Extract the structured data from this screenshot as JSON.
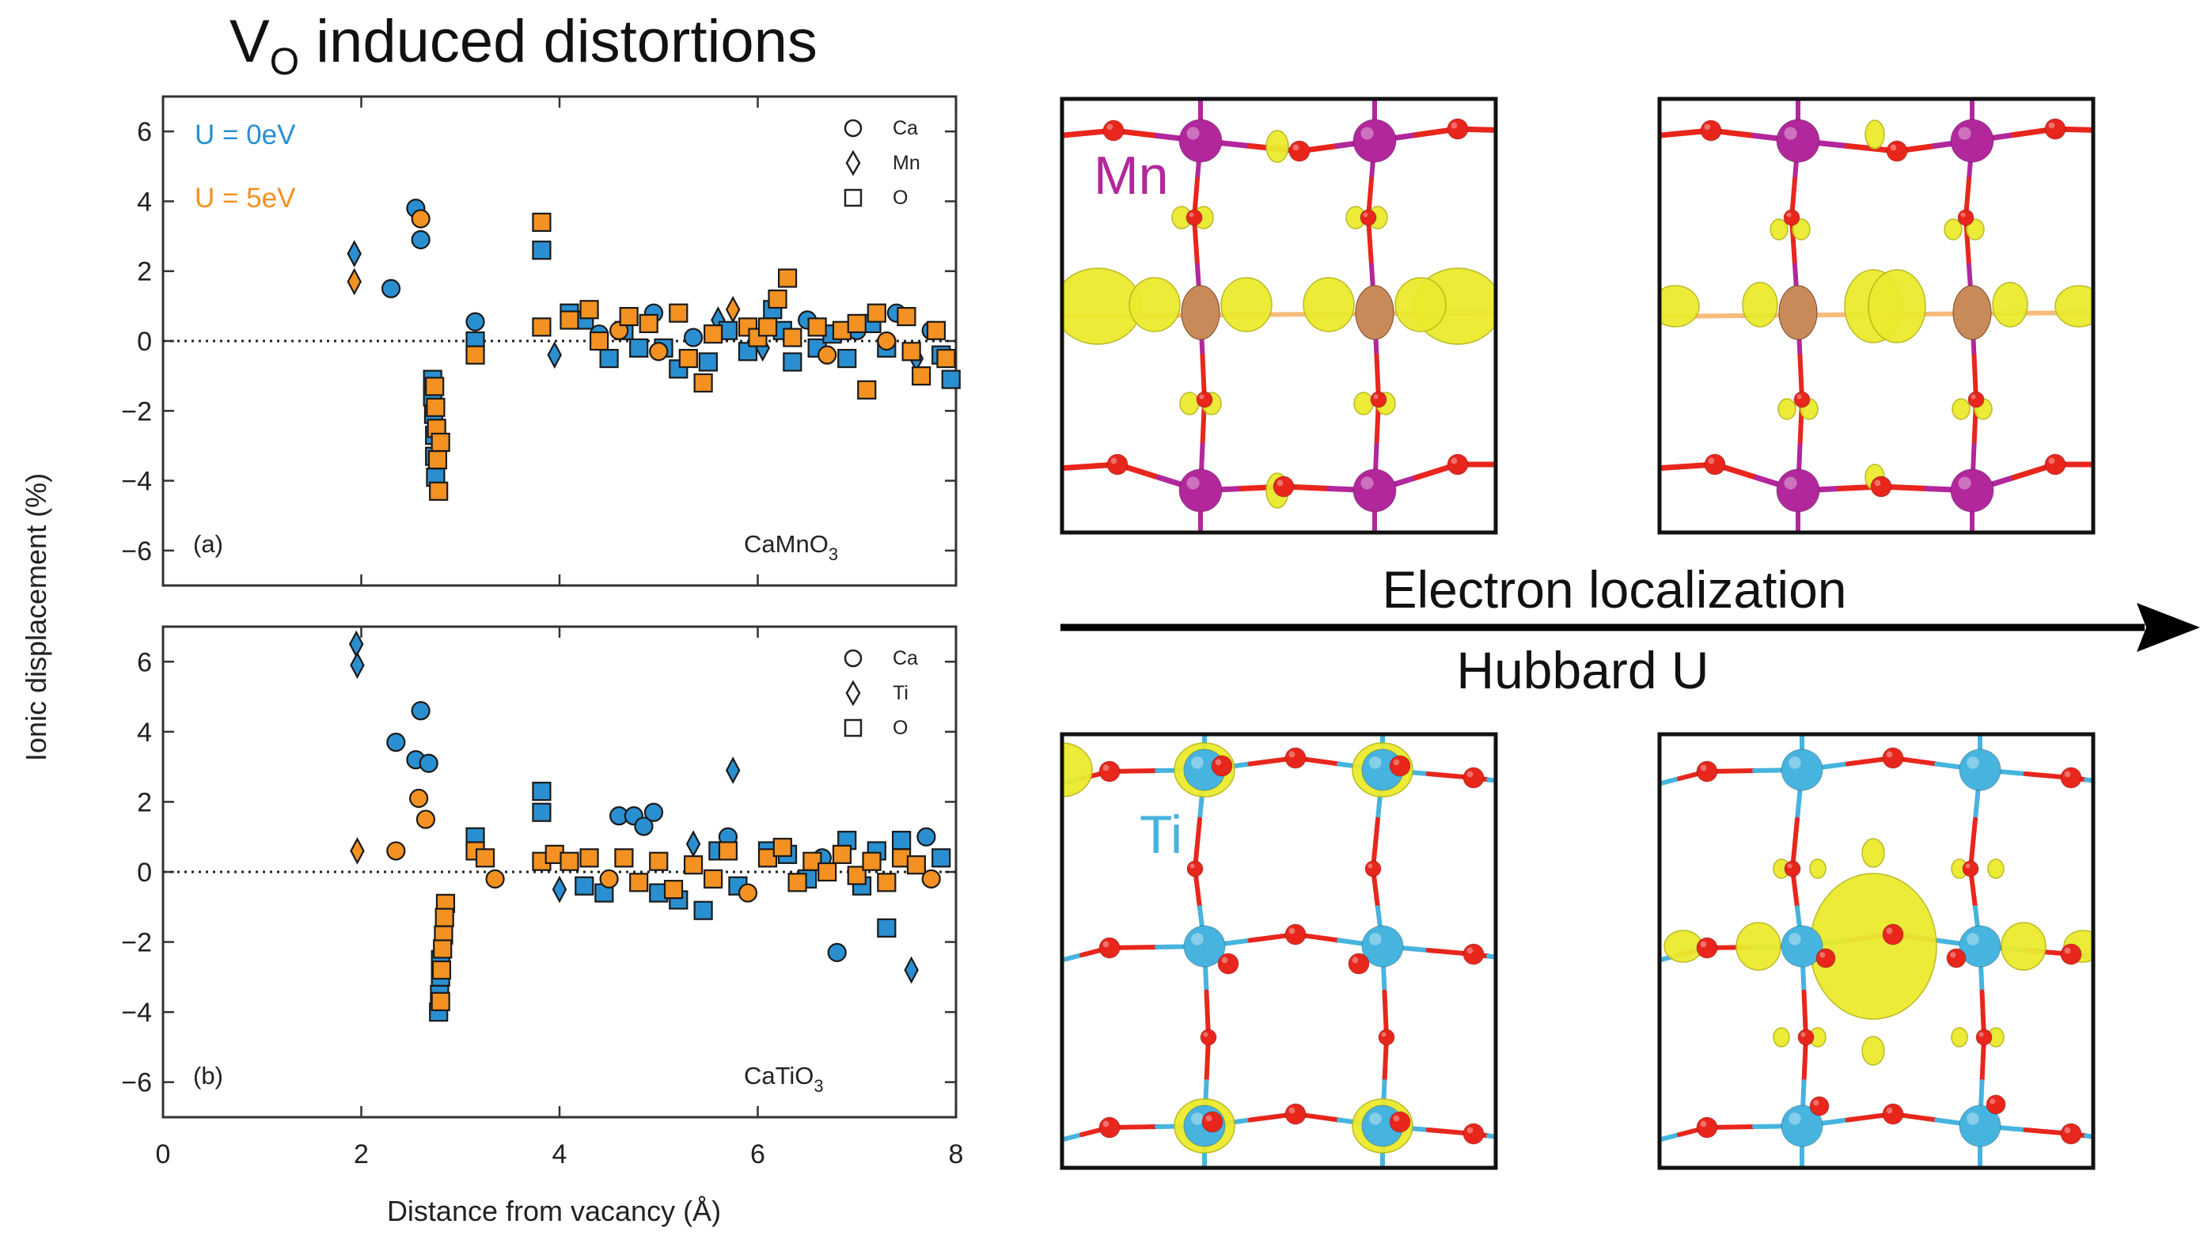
{
  "title": {
    "main": "V",
    "sub": "O",
    "rest": " induced distortions"
  },
  "colors": {
    "u0": "#2a8fd0",
    "u5": "#f39122",
    "mn": "#b2279c",
    "o": "#e8261c",
    "ti": "#46b4df",
    "iso": "#eaea2e"
  },
  "shared_xlabel": "Distance from vacancy (Å)",
  "shared_ylabel": "Ionic displacement (%)",
  "legend_u": [
    "U = 0eV",
    "U = 5eV"
  ],
  "chart_data": [
    {
      "type": "scatter",
      "panel_label": "(a)",
      "material": {
        "base": "CaMnO",
        "sub": "3"
      },
      "xlim": [
        0,
        8
      ],
      "ylim": [
        -7,
        7
      ],
      "xticks": [
        "0",
        "2",
        "4",
        "6",
        "8"
      ],
      "yticks": [
        "6",
        "4",
        "2",
        "0",
        "−2",
        "−4",
        "−6"
      ],
      "species": [
        {
          "label": "Ca",
          "marker": "circle"
        },
        {
          "label": "Mn",
          "marker": "diamond"
        },
        {
          "label": "O",
          "marker": "square"
        }
      ],
      "series": [
        {
          "name": "U = 0eV",
          "points": [
            [
              1.93,
              2.5,
              "d"
            ],
            [
              2.3,
              1.5,
              "c"
            ],
            [
              2.55,
              3.8,
              "c"
            ],
            [
              2.6,
              2.9,
              "c"
            ],
            [
              2.72,
              -1.1,
              "s"
            ],
            [
              2.72,
              -1.6,
              "s"
            ],
            [
              2.73,
              -2.1,
              "s"
            ],
            [
              2.74,
              -2.7,
              "s"
            ],
            [
              2.74,
              -3.3,
              "s"
            ],
            [
              2.75,
              -3.9,
              "s"
            ],
            [
              3.15,
              0.55,
              "c"
            ],
            [
              3.15,
              0.0,
              "s"
            ],
            [
              3.82,
              2.6,
              "s"
            ],
            [
              3.95,
              -0.4,
              "d"
            ],
            [
              4.1,
              0.8,
              "s"
            ],
            [
              4.25,
              0.6,
              "s"
            ],
            [
              4.4,
              0.2,
              "c"
            ],
            [
              4.5,
              -0.5,
              "s"
            ],
            [
              4.65,
              0.3,
              "s"
            ],
            [
              4.8,
              -0.2,
              "s"
            ],
            [
              4.95,
              0.8,
              "c"
            ],
            [
              5.05,
              -0.2,
              "s"
            ],
            [
              5.2,
              -0.8,
              "s"
            ],
            [
              5.35,
              0.1,
              "c"
            ],
            [
              5.5,
              -0.6,
              "s"
            ],
            [
              5.6,
              0.6,
              "d"
            ],
            [
              5.7,
              0.3,
              "s"
            ],
            [
              5.9,
              -0.3,
              "s"
            ],
            [
              6.05,
              -0.2,
              "d"
            ],
            [
              6.15,
              0.9,
              "s"
            ],
            [
              6.25,
              0.3,
              "s"
            ],
            [
              6.35,
              -0.6,
              "s"
            ],
            [
              6.5,
              0.6,
              "c"
            ],
            [
              6.6,
              -0.2,
              "s"
            ],
            [
              6.75,
              0.2,
              "s"
            ],
            [
              6.9,
              -0.5,
              "s"
            ],
            [
              7.0,
              0.3,
              "c"
            ],
            [
              7.15,
              0.5,
              "s"
            ],
            [
              7.3,
              -0.2,
              "s"
            ],
            [
              7.4,
              0.8,
              "c"
            ],
            [
              7.6,
              -0.5,
              "d"
            ],
            [
              7.75,
              0.3,
              "c"
            ],
            [
              7.85,
              -0.4,
              "s"
            ],
            [
              7.95,
              -1.1,
              "s"
            ]
          ]
        },
        {
          "name": "U = 5eV",
          "points": [
            [
              1.93,
              1.7,
              "d"
            ],
            [
              2.6,
              3.5,
              "c"
            ],
            [
              2.74,
              -1.3,
              "s"
            ],
            [
              2.75,
              -1.9,
              "s"
            ],
            [
              2.76,
              -2.5,
              "s"
            ],
            [
              2.77,
              -3.4,
              "s"
            ],
            [
              2.78,
              -4.3,
              "s"
            ],
            [
              2.8,
              -2.9,
              "s"
            ],
            [
              3.15,
              -0.4,
              "s"
            ],
            [
              3.82,
              3.4,
              "s"
            ],
            [
              3.82,
              0.4,
              "s"
            ],
            [
              4.1,
              0.6,
              "s"
            ],
            [
              4.3,
              0.9,
              "s"
            ],
            [
              4.4,
              0.0,
              "s"
            ],
            [
              4.6,
              0.3,
              "c"
            ],
            [
              4.7,
              0.7,
              "s"
            ],
            [
              4.9,
              0.5,
              "s"
            ],
            [
              5.0,
              -0.3,
              "c"
            ],
            [
              5.2,
              0.8,
              "s"
            ],
            [
              5.3,
              -0.5,
              "s"
            ],
            [
              5.45,
              -1.2,
              "s"
            ],
            [
              5.55,
              0.2,
              "s"
            ],
            [
              5.75,
              0.9,
              "d"
            ],
            [
              5.9,
              0.4,
              "s"
            ],
            [
              6.0,
              0.1,
              "s"
            ],
            [
              6.1,
              0.4,
              "s"
            ],
            [
              6.3,
              1.8,
              "s"
            ],
            [
              6.2,
              1.2,
              "s"
            ],
            [
              6.35,
              0.1,
              "s"
            ],
            [
              6.6,
              0.4,
              "s"
            ],
            [
              6.7,
              -0.4,
              "c"
            ],
            [
              6.85,
              0.3,
              "s"
            ],
            [
              7.0,
              0.5,
              "s"
            ],
            [
              7.1,
              -1.4,
              "s"
            ],
            [
              7.2,
              0.8,
              "s"
            ],
            [
              7.3,
              0.0,
              "c"
            ],
            [
              7.5,
              0.7,
              "s"
            ],
            [
              7.55,
              -0.3,
              "s"
            ],
            [
              7.65,
              -1.0,
              "s"
            ],
            [
              7.8,
              0.3,
              "s"
            ],
            [
              7.9,
              -0.5,
              "s"
            ]
          ]
        }
      ]
    },
    {
      "type": "scatter",
      "panel_label": "(b)",
      "material": {
        "base": "CaTiO",
        "sub": "3"
      },
      "xlim": [
        0,
        8
      ],
      "ylim": [
        -7,
        7
      ],
      "xticks": [
        "0",
        "2",
        "4",
        "6",
        "8"
      ],
      "yticks": [
        "6",
        "4",
        "2",
        "0",
        "−2",
        "−4",
        "−6"
      ],
      "species": [
        {
          "label": "Ca",
          "marker": "circle"
        },
        {
          "label": "Ti",
          "marker": "diamond"
        },
        {
          "label": "O",
          "marker": "square"
        }
      ],
      "series": [
        {
          "name": "U = 0eV",
          "points": [
            [
              1.95,
              6.5,
              "d"
            ],
            [
              1.96,
              5.9,
              "d"
            ],
            [
              2.35,
              3.7,
              "c"
            ],
            [
              2.55,
              3.2,
              "c"
            ],
            [
              2.6,
              4.6,
              "c"
            ],
            [
              2.68,
              3.1,
              "c"
            ],
            [
              2.8,
              -2.5,
              "s"
            ],
            [
              2.8,
              -3.0,
              "s"
            ],
            [
              2.79,
              -3.5,
              "s"
            ],
            [
              2.78,
              -4.0,
              "s"
            ],
            [
              3.15,
              1.0,
              "s"
            ],
            [
              3.82,
              2.3,
              "s"
            ],
            [
              3.82,
              1.7,
              "s"
            ],
            [
              4.0,
              -0.5,
              "d"
            ],
            [
              4.25,
              -0.4,
              "s"
            ],
            [
              4.45,
              -0.6,
              "s"
            ],
            [
              4.6,
              1.6,
              "c"
            ],
            [
              4.75,
              1.6,
              "c"
            ],
            [
              4.85,
              1.3,
              "c"
            ],
            [
              4.95,
              1.7,
              "c"
            ],
            [
              5.0,
              -0.6,
              "s"
            ],
            [
              5.2,
              -0.8,
              "s"
            ],
            [
              5.35,
              0.8,
              "d"
            ],
            [
              5.45,
              -1.1,
              "s"
            ],
            [
              5.6,
              0.6,
              "s"
            ],
            [
              5.7,
              1.0,
              "c"
            ],
            [
              5.75,
              2.9,
              "d"
            ],
            [
              5.8,
              -0.4,
              "s"
            ],
            [
              6.1,
              0.6,
              "s"
            ],
            [
              6.3,
              0.5,
              "s"
            ],
            [
              6.5,
              -0.2,
              "s"
            ],
            [
              6.65,
              0.4,
              "c"
            ],
            [
              6.8,
              -2.3,
              "c"
            ],
            [
              6.9,
              0.9,
              "s"
            ],
            [
              7.05,
              -0.4,
              "s"
            ],
            [
              7.2,
              0.6,
              "s"
            ],
            [
              7.3,
              -1.6,
              "s"
            ],
            [
              7.45,
              0.9,
              "s"
            ],
            [
              7.55,
              -2.8,
              "d"
            ],
            [
              7.7,
              1.0,
              "c"
            ],
            [
              7.85,
              0.4,
              "s"
            ]
          ]
        },
        {
          "name": "U = 5eV",
          "points": [
            [
              1.96,
              0.6,
              "d"
            ],
            [
              2.35,
              0.6,
              "c"
            ],
            [
              2.58,
              2.1,
              "c"
            ],
            [
              2.65,
              1.5,
              "c"
            ],
            [
              2.85,
              -0.9,
              "s"
            ],
            [
              2.84,
              -1.3,
              "s"
            ],
            [
              2.83,
              -1.8,
              "s"
            ],
            [
              2.82,
              -2.2,
              "s"
            ],
            [
              2.81,
              -2.8,
              "s"
            ],
            [
              2.8,
              -3.7,
              "s"
            ],
            [
              3.15,
              0.6,
              "s"
            ],
            [
              3.25,
              0.4,
              "s"
            ],
            [
              3.35,
              -0.2,
              "c"
            ],
            [
              3.82,
              0.3,
              "s"
            ],
            [
              3.95,
              0.5,
              "s"
            ],
            [
              4.1,
              0.3,
              "s"
            ],
            [
              4.3,
              0.4,
              "s"
            ],
            [
              4.5,
              -0.2,
              "c"
            ],
            [
              4.65,
              0.4,
              "s"
            ],
            [
              4.8,
              -0.3,
              "s"
            ],
            [
              5.0,
              0.3,
              "s"
            ],
            [
              5.15,
              -0.5,
              "s"
            ],
            [
              5.35,
              0.2,
              "s"
            ],
            [
              5.55,
              -0.2,
              "s"
            ],
            [
              5.7,
              0.6,
              "s"
            ],
            [
              5.9,
              -0.6,
              "c"
            ],
            [
              6.1,
              0.4,
              "s"
            ],
            [
              6.25,
              0.7,
              "s"
            ],
            [
              6.4,
              -0.3,
              "s"
            ],
            [
              6.55,
              0.3,
              "s"
            ],
            [
              6.7,
              0.0,
              "s"
            ],
            [
              6.85,
              0.5,
              "s"
            ],
            [
              7.0,
              -0.1,
              "s"
            ],
            [
              7.15,
              0.3,
              "s"
            ],
            [
              7.3,
              -0.3,
              "s"
            ],
            [
              7.45,
              0.4,
              "s"
            ],
            [
              7.6,
              0.2,
              "s"
            ],
            [
              7.75,
              -0.2,
              "c"
            ]
          ]
        }
      ]
    }
  ],
  "structures": {
    "mn_label": "Mn",
    "ti_label": "Ti",
    "arrow_top": "Electron localization",
    "arrow_bottom": "Hubbard U"
  }
}
